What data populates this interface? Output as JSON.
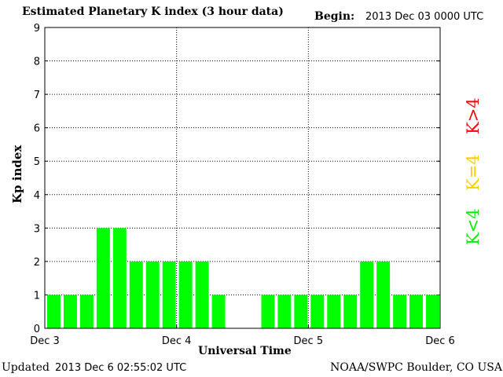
{
  "header": {
    "title": "Estimated Planetary K index (3 hour data)",
    "begin_label": "Begin:",
    "begin_value": "2013 Dec 03 0000 UTC"
  },
  "footer": {
    "updated_label": "Updated",
    "updated_value": "2013 Dec  6 02:55:02 UTC",
    "credit": "NOAA/SWPC Boulder, CO USA"
  },
  "legend": {
    "high": "K>4",
    "mid": "K=4",
    "low": "K<4",
    "colors": {
      "high": "#ff0000",
      "mid": "#ffcc00",
      "low": "#00ee00"
    }
  },
  "chart_data": {
    "type": "bar",
    "title": "Estimated Planetary K index (3 hour data)",
    "xlabel": "Universal Time",
    "ylabel": "Kp index",
    "ylim": [
      0,
      9
    ],
    "yticks": [
      "0",
      "1",
      "2",
      "3",
      "4",
      "5",
      "6",
      "7",
      "8",
      "9"
    ],
    "xticks": [
      "Dec 3",
      "Dec 4",
      "Dec 5",
      "Dec 6"
    ],
    "grid": true,
    "bar_color": "#00ff00",
    "values": [
      1,
      1,
      1,
      3,
      3,
      2,
      2,
      2,
      2,
      2,
      1,
      null,
      null,
      1,
      1,
      1,
      1,
      1,
      1,
      2,
      2,
      1,
      1,
      1
    ]
  }
}
